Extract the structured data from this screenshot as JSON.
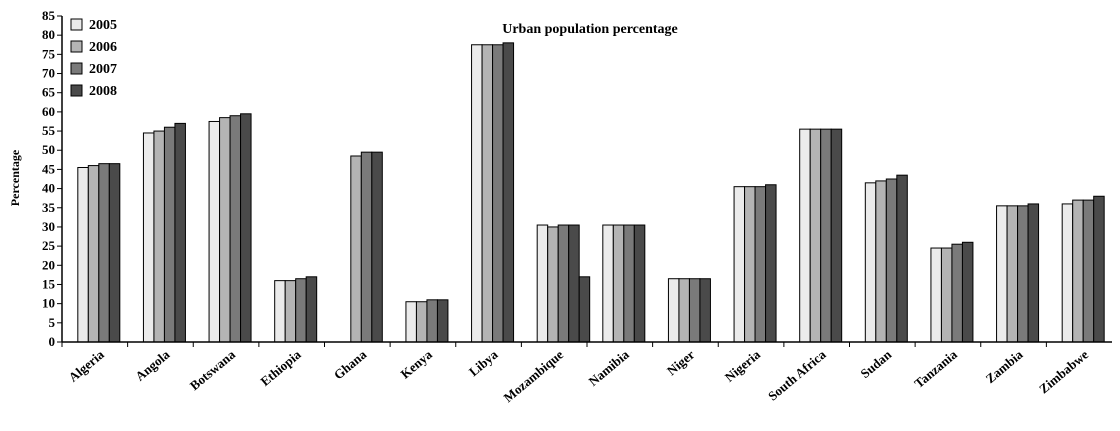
{
  "chart_data": {
    "type": "bar",
    "title": "Urban population percentage",
    "ylabel": "Percentage",
    "xlabel": "",
    "ylim": [
      0,
      85
    ],
    "y_ticks": [
      0,
      5,
      10,
      15,
      20,
      25,
      30,
      35,
      40,
      45,
      50,
      55,
      60,
      65,
      70,
      75,
      80,
      85
    ],
    "grid": false,
    "legend_position": "top-left",
    "categories": [
      "Algeria",
      "Angola",
      "Botswana",
      "Ethiopia",
      "Ghana",
      "Kenya",
      "Libya",
      "Mozambique",
      "Namibia",
      "Niger",
      "Nigeria",
      "South Africa",
      "Sudan",
      "Tanzania",
      "Zambia",
      "Zimbabwe"
    ],
    "series": [
      {
        "name": "2005",
        "color": "#ebebeb",
        "values": [
          45.5,
          54.5,
          57.5,
          16,
          null,
          10.5,
          77.5,
          30.5,
          30.5,
          16.5,
          40.5,
          55.5,
          41.5,
          24.5,
          35.5,
          36
        ]
      },
      {
        "name": "2006",
        "color": "#b4b4b4",
        "values": [
          46,
          55,
          58.5,
          16,
          48.5,
          10.5,
          77.5,
          30,
          30.5,
          16.5,
          40.5,
          55.5,
          42,
          24.5,
          35.5,
          37
        ]
      },
      {
        "name": "2007",
        "color": "#7a7a7a",
        "values": [
          46.5,
          56,
          59,
          16.5,
          49.5,
          11,
          77.5,
          30.5,
          30.5,
          16.5,
          40.5,
          55.5,
          42.5,
          25.5,
          35.5,
          37
        ]
      },
      {
        "name": "2008",
        "color": "#4a4a4a",
        "values": [
          46.5,
          57,
          59.5,
          17,
          49.5,
          11,
          78,
          30.5,
          30.5,
          16.5,
          41,
          55.5,
          43.5,
          26,
          36,
          38
        ]
      }
    ],
    "extra_bars": [
      {
        "category": "Mozambique",
        "value": 17,
        "color": "#4a4a4a"
      }
    ]
  }
}
